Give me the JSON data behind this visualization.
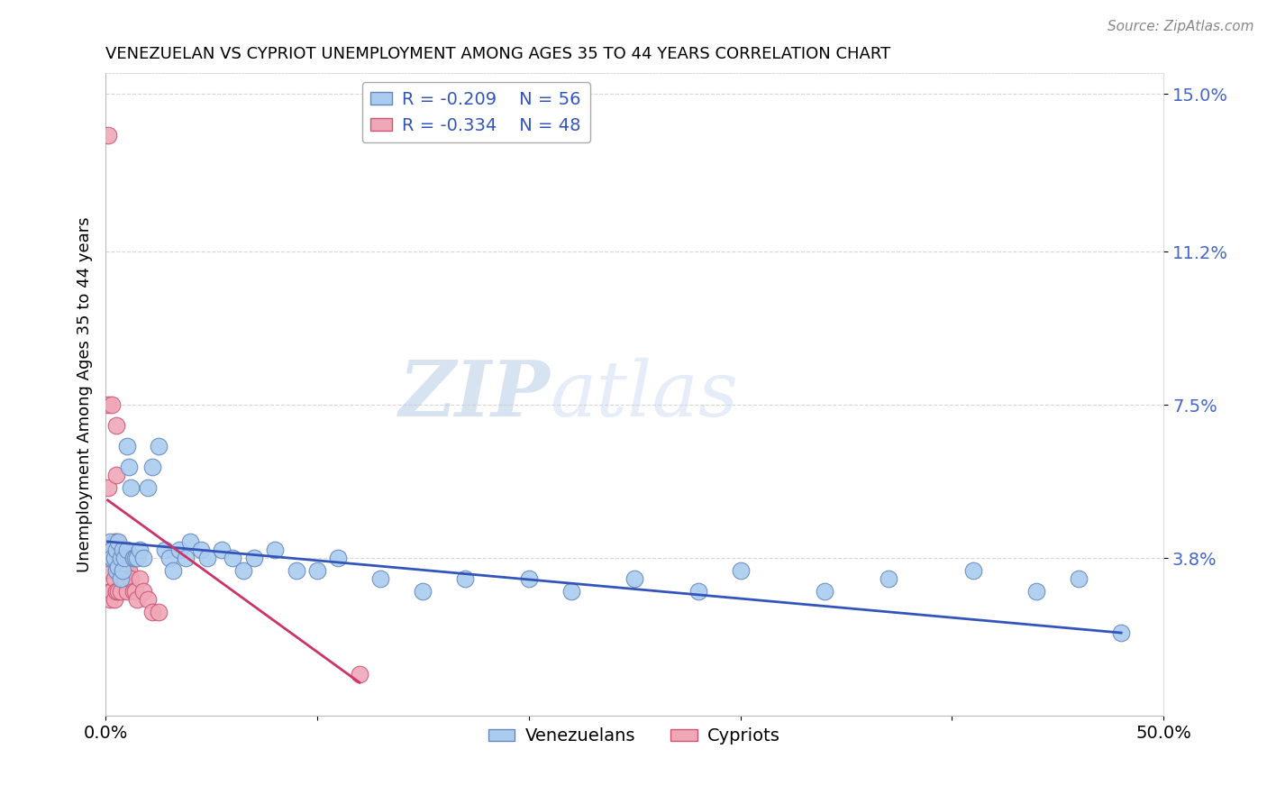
{
  "title": "VENEZUELAN VS CYPRIOT UNEMPLOYMENT AMONG AGES 35 TO 44 YEARS CORRELATION CHART",
  "source": "Source: ZipAtlas.com",
  "ylabel": "Unemployment Among Ages 35 to 44 years",
  "xlim": [
    0.0,
    0.5
  ],
  "ylim": [
    0.0,
    0.155
  ],
  "yticks": [
    0.038,
    0.075,
    0.112,
    0.15
  ],
  "ytick_labels": [
    "3.8%",
    "7.5%",
    "11.2%",
    "15.0%"
  ],
  "xticks": [
    0.0,
    0.1,
    0.2,
    0.3,
    0.4,
    0.5
  ],
  "xtick_labels": [
    "0.0%",
    "",
    "",
    "",
    "",
    "50.0%"
  ],
  "venezuelan_color": "#aaccf0",
  "cypriot_color": "#f0a8b8",
  "venezuelan_edge": "#6688bb",
  "cypriot_edge": "#cc5577",
  "trend_blue": "#3355bb",
  "trend_pink": "#cc3366",
  "legend_R_venezuelan": "R = -0.209",
  "legend_N_venezuelan": "N = 56",
  "legend_R_cypriot": "R = -0.334",
  "legend_N_cypriot": "N = 48",
  "watermark_zip": "ZIP",
  "watermark_atlas": "atlas",
  "venezuelan_x": [
    0.001,
    0.002,
    0.003,
    0.003,
    0.004,
    0.005,
    0.005,
    0.006,
    0.006,
    0.007,
    0.007,
    0.008,
    0.008,
    0.009,
    0.01,
    0.01,
    0.011,
    0.012,
    0.013,
    0.014,
    0.015,
    0.016,
    0.018,
    0.02,
    0.022,
    0.025,
    0.028,
    0.03,
    0.032,
    0.035,
    0.038,
    0.04,
    0.045,
    0.048,
    0.055,
    0.06,
    0.065,
    0.07,
    0.08,
    0.09,
    0.1,
    0.11,
    0.13,
    0.15,
    0.17,
    0.2,
    0.22,
    0.25,
    0.28,
    0.3,
    0.34,
    0.37,
    0.41,
    0.44,
    0.46,
    0.48
  ],
  "venezuelan_y": [
    0.038,
    0.042,
    0.04,
    0.038,
    0.038,
    0.04,
    0.035,
    0.042,
    0.036,
    0.038,
    0.033,
    0.04,
    0.035,
    0.038,
    0.04,
    0.065,
    0.06,
    0.055,
    0.038,
    0.038,
    0.038,
    0.04,
    0.038,
    0.055,
    0.06,
    0.065,
    0.04,
    0.038,
    0.035,
    0.04,
    0.038,
    0.042,
    0.04,
    0.038,
    0.04,
    0.038,
    0.035,
    0.038,
    0.04,
    0.035,
    0.035,
    0.038,
    0.033,
    0.03,
    0.033,
    0.033,
    0.03,
    0.033,
    0.03,
    0.035,
    0.03,
    0.033,
    0.035,
    0.03,
    0.033,
    0.02
  ],
  "cypriot_x": [
    0.001,
    0.001,
    0.001,
    0.001,
    0.002,
    0.002,
    0.002,
    0.002,
    0.002,
    0.003,
    0.003,
    0.003,
    0.003,
    0.004,
    0.004,
    0.004,
    0.004,
    0.005,
    0.005,
    0.005,
    0.005,
    0.005,
    0.006,
    0.006,
    0.006,
    0.006,
    0.007,
    0.007,
    0.007,
    0.008,
    0.008,
    0.008,
    0.009,
    0.009,
    0.01,
    0.01,
    0.01,
    0.011,
    0.012,
    0.013,
    0.014,
    0.015,
    0.016,
    0.018,
    0.02,
    0.022,
    0.025,
    0.12
  ],
  "cypriot_y": [
    0.14,
    0.075,
    0.055,
    0.038,
    0.038,
    0.038,
    0.035,
    0.03,
    0.028,
    0.075,
    0.04,
    0.038,
    0.03,
    0.042,
    0.038,
    0.033,
    0.028,
    0.07,
    0.058,
    0.042,
    0.038,
    0.03,
    0.04,
    0.038,
    0.035,
    0.03,
    0.038,
    0.035,
    0.03,
    0.04,
    0.038,
    0.033,
    0.038,
    0.033,
    0.038,
    0.035,
    0.03,
    0.035,
    0.033,
    0.03,
    0.03,
    0.028,
    0.033,
    0.03,
    0.028,
    0.025,
    0.025,
    0.01
  ],
  "trend_ven_x0": 0.001,
  "trend_ven_x1": 0.48,
  "trend_ven_y0": 0.042,
  "trend_ven_y1": 0.02,
  "trend_cyp_x0": 0.001,
  "trend_cyp_x1": 0.12,
  "trend_cyp_y0": 0.052,
  "trend_cyp_y1": 0.008
}
